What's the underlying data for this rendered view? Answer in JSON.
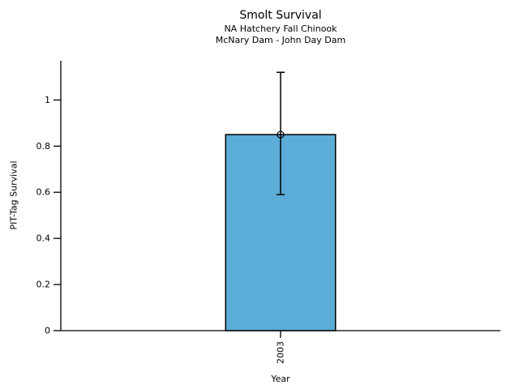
{
  "chart_data": {
    "type": "bar",
    "title": "Smolt Survival",
    "subtitle_lines": [
      "NA Hatchery Fall Chinook",
      "McNary Dam - John Day Dam"
    ],
    "xlabel": "Year",
    "ylabel": "PIT-Tag Survival",
    "categories": [
      "2003"
    ],
    "series": [
      {
        "name": "PIT-Tag Survival",
        "values": [
          0.85
        ]
      }
    ],
    "error_bars": [
      {
        "category": "2003",
        "center": 0.85,
        "low": 0.59,
        "high": 1.12
      }
    ],
    "ytick_values": [
      0,
      0.2,
      0.4,
      0.6,
      0.8,
      1
    ],
    "ytick_labels": [
      "0",
      "0.2",
      "0.4",
      "0.6",
      "0.8",
      "1"
    ],
    "ylim": [
      0,
      1.17
    ],
    "xtick_rotation_deg": 90,
    "grid": false,
    "legend": "none",
    "marker": {
      "shape": "open-circle",
      "at_value": 0.85
    },
    "colors": {
      "bar_fill": "#5BACD6",
      "bar_edge": "#000000",
      "error_bar": "#000000",
      "text": "#000000",
      "background": "#FFFFFF"
    }
  }
}
